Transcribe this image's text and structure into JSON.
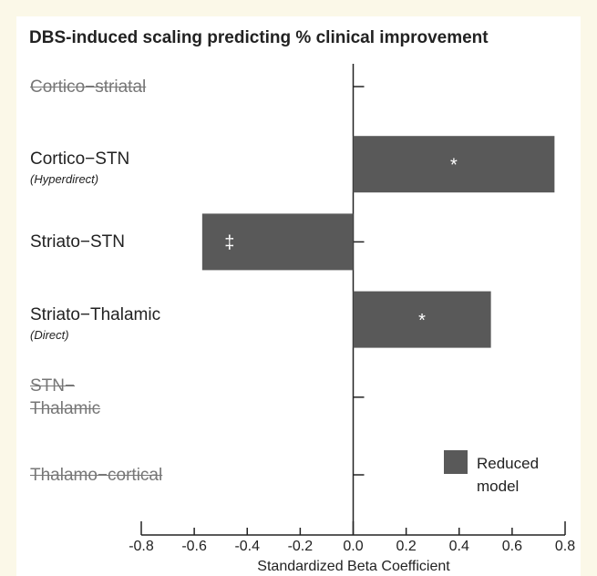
{
  "chart_data": {
    "type": "barh",
    "title": "DBS-induced scaling predicting % clinical improvement",
    "categories": [
      "Cortico−striatal",
      "Cortico−STN",
      "Striato−STN",
      "Striato−Thalamic",
      "STN−\nThalamic",
      "Thalamo−cortical"
    ],
    "sublabels": [
      null,
      "(Hyperdirect)",
      null,
      "(Direct)",
      null,
      null
    ],
    "excluded": [
      true,
      false,
      false,
      false,
      true,
      true
    ],
    "series": [
      {
        "name": "Reduced model",
        "color": "#595959",
        "values": [
          null,
          0.76,
          -0.57,
          0.52,
          null,
          null
        ]
      }
    ],
    "markers": [
      null,
      "*",
      "‡",
      "*",
      null,
      null
    ],
    "xlabel": "Standardized Beta Coefficient",
    "xlim": [
      -0.8,
      0.8
    ],
    "xticks": [
      -0.8,
      -0.6,
      -0.4,
      -0.2,
      {
        "value": 0,
        "label": "0.0"
      },
      0.2,
      0.4,
      0.6,
      0.8
    ],
    "legend": "lower right"
  }
}
